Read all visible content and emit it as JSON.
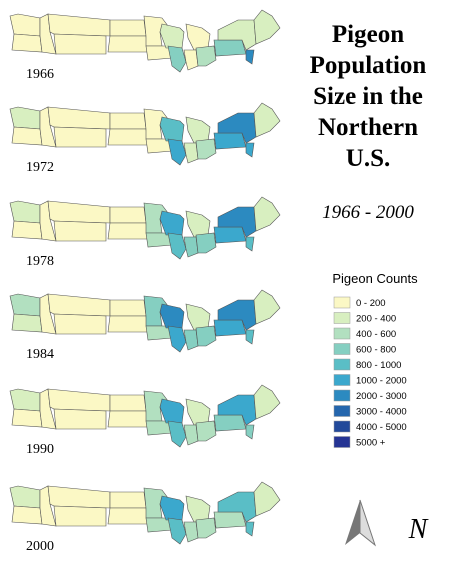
{
  "title": [
    "Pigeon",
    "Population",
    "Size in the",
    "Northern",
    "U.S."
  ],
  "subtitle": "1966 - 2000",
  "maps": [
    {
      "year": "1966"
    },
    {
      "year": "1972"
    },
    {
      "year": "1978"
    },
    {
      "year": "1984"
    },
    {
      "year": "1990"
    },
    {
      "year": "2000"
    }
  ],
  "legend": {
    "title": "Pigeon Counts",
    "items": [
      {
        "label": "0 - 200",
        "color": "#fbf8c5"
      },
      {
        "label": "200 - 400",
        "color": "#d8efc0"
      },
      {
        "label": "400 - 600",
        "color": "#b2e0c0"
      },
      {
        "label": "600 - 800",
        "color": "#85cfc1"
      },
      {
        "label": "800 - 1000",
        "color": "#5abec6"
      },
      {
        "label": "1000 - 2000",
        "color": "#3ba8cd"
      },
      {
        "label": "2000 - 3000",
        "color": "#2c8ac0"
      },
      {
        "label": "3000 - 4000",
        "color": "#2466ad"
      },
      {
        "label": "4000 - 5000",
        "color": "#22499a"
      },
      {
        "label": "5000 +",
        "color": "#253494"
      }
    ]
  },
  "north_label": "N"
}
